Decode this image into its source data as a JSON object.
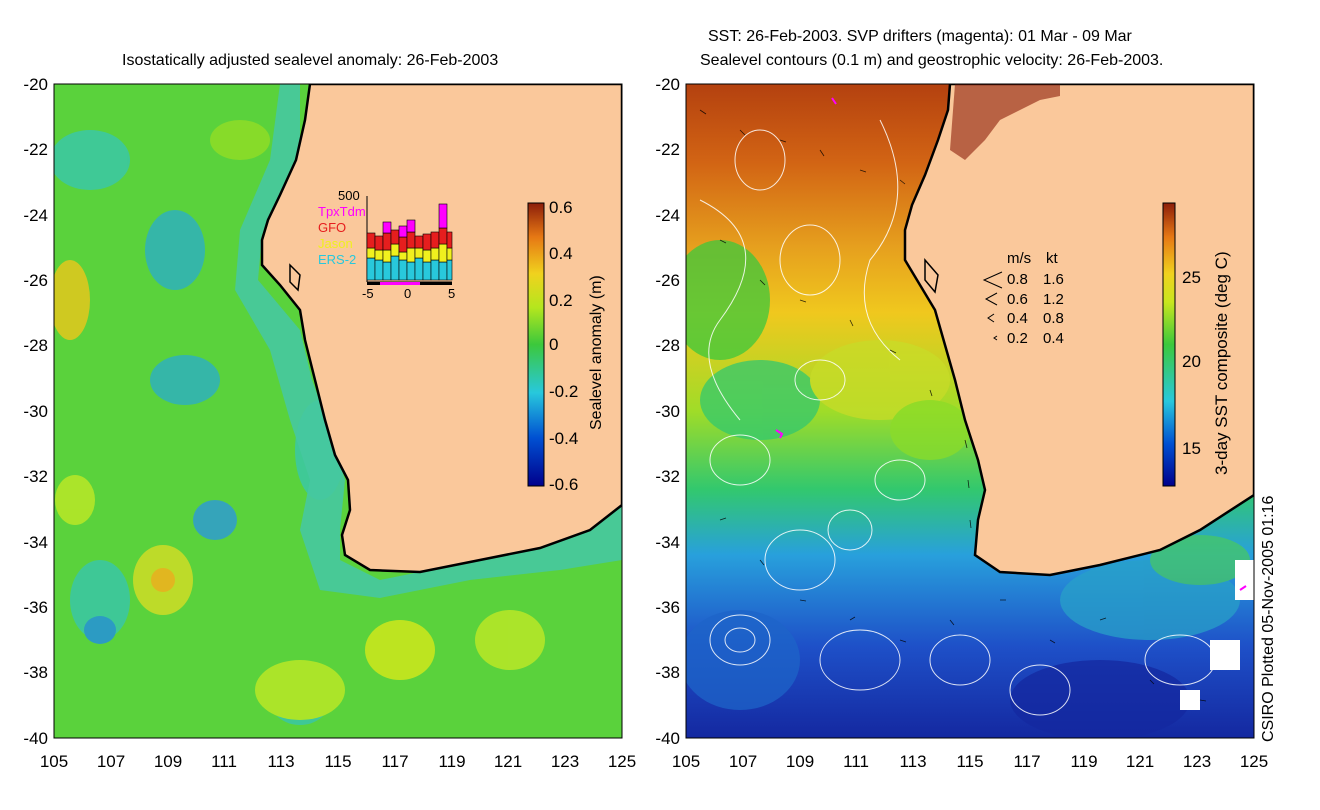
{
  "left_panel": {
    "title": "Isostatically adjusted sealevel anomaly: 26-Feb-2003",
    "y_ticks": [
      "-20",
      "-22",
      "-24",
      "-26",
      "-28",
      "-30",
      "-32",
      "-34",
      "-36",
      "-38",
      "-40"
    ],
    "x_ticks": [
      "105",
      "107",
      "109",
      "111",
      "113",
      "115",
      "117",
      "119",
      "121",
      "123",
      "125"
    ],
    "colorbar": {
      "label": "Sealevel anomaly (m)",
      "ticks": [
        "0.6",
        "0.4",
        "0.2",
        "0",
        "-0.2",
        "-0.4",
        "-0.6"
      ]
    },
    "inset": {
      "ymax_label": "500",
      "legend": [
        "TpxTdm",
        "GFO",
        "Jason",
        "ERS-2"
      ],
      "x_ticks": [
        "-5",
        "0",
        "5"
      ]
    }
  },
  "right_panel": {
    "title_line1": "SST: 26-Feb-2003. SVP drifters (magenta): 01 Mar - 09 Mar",
    "title_line2": "Sealevel contours (0.1 m) and geostrophic velocity: 26-Feb-2003.",
    "y_ticks": [
      "-20",
      "-22",
      "-24",
      "-26",
      "-28",
      "-30",
      "-32",
      "-34",
      "-36",
      "-38",
      "-40"
    ],
    "x_ticks": [
      "105",
      "107",
      "109",
      "111",
      "113",
      "115",
      "117",
      "119",
      "121",
      "123",
      "125"
    ],
    "colorbar": {
      "label": "3-day SST composite (deg C)",
      "ticks": [
        "25",
        "20",
        "15"
      ]
    },
    "velocity_key": {
      "header_ms": "m/s",
      "header_kt": "kt",
      "rows": [
        {
          "ms": "0.8",
          "kt": "1.6"
        },
        {
          "ms": "0.6",
          "kt": "1.2"
        },
        {
          "ms": "0.4",
          "kt": "0.8"
        },
        {
          "ms": "0.2",
          "kt": "0.4"
        }
      ]
    }
  },
  "credit": "CSIRO Plotted 05-Nov-2005 01:16",
  "colors": {
    "land": "#fac89b",
    "ocean_mid": "#3cc83c",
    "coast": "#000000",
    "drifter": "#ff00ff"
  }
}
